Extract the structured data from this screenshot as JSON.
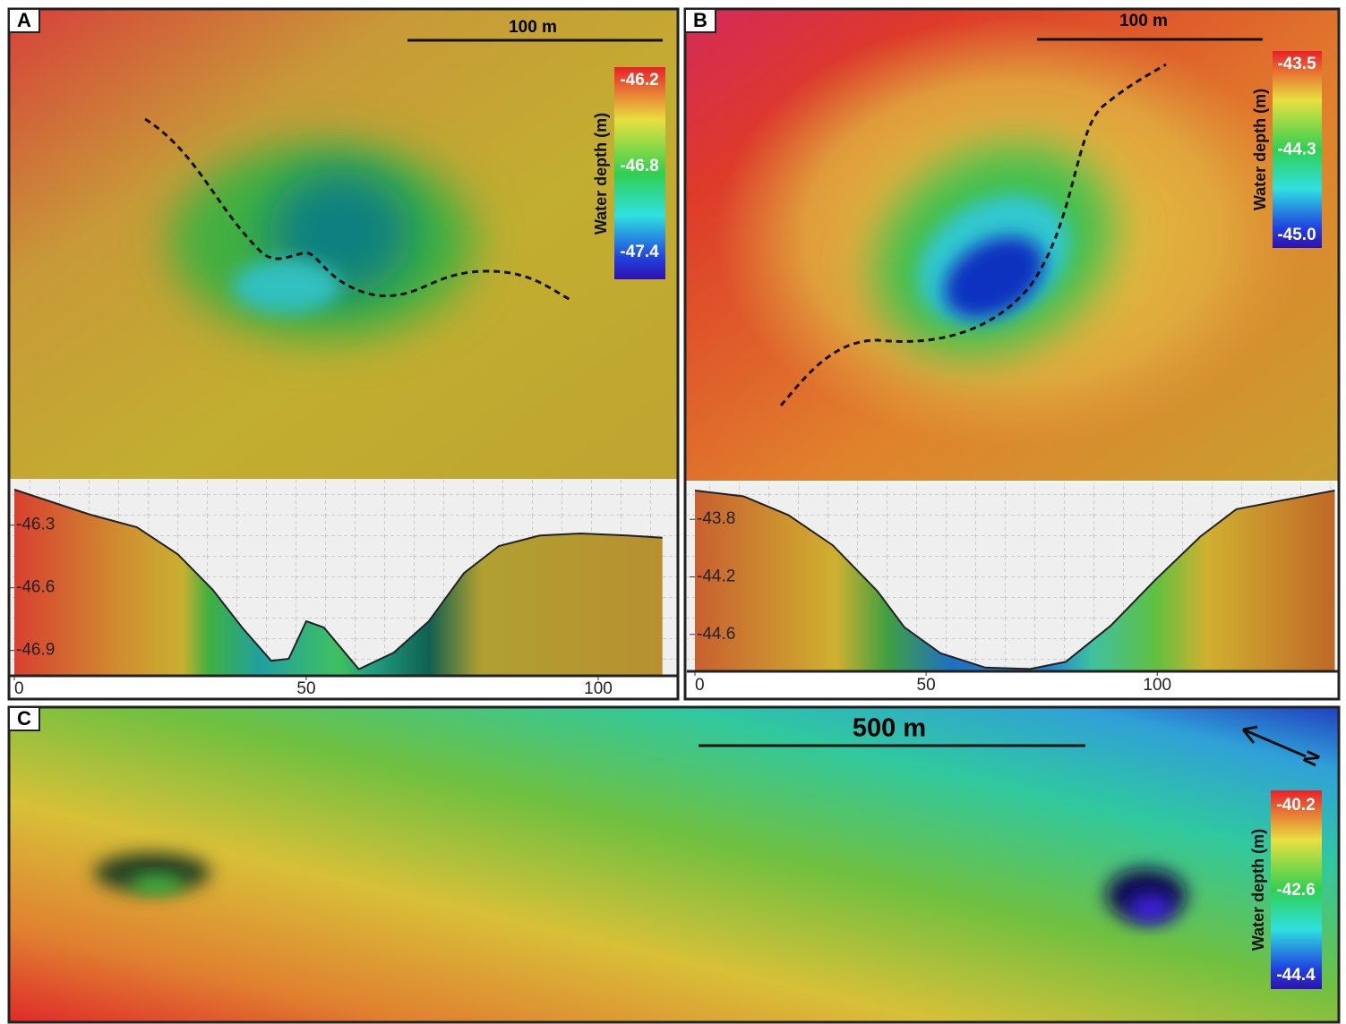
{
  "panels": {
    "a": {
      "label": "A",
      "scale": "100 m",
      "colorbar": {
        "title": "Water depth (m)",
        "ticks": [
          -46.2,
          -46.8,
          -47.4
        ]
      }
    },
    "b": {
      "label": "B",
      "scale": "100 m",
      "colorbar": {
        "title": "Water depth (m)",
        "ticks": [
          -43.5,
          -44.3,
          {
            "value": -45.0,
            "label": "-45.0"
          }
        ]
      }
    },
    "c": {
      "label": "C",
      "scale": "500 m",
      "north": "N",
      "colorbar": {
        "title": "Water depth (m)",
        "ticks": [
          -40.2,
          -42.6,
          -44.4
        ]
      }
    }
  },
  "chart_data": [
    {
      "type": "line",
      "x": [
        0,
        13,
        21,
        28,
        34,
        39,
        44,
        47,
        50,
        53,
        59,
        65,
        71,
        77,
        83,
        90,
        97,
        105,
        111
      ],
      "values": [
        -46.13,
        -46.25,
        -46.31,
        -46.44,
        -46.61,
        -46.79,
        -46.95,
        -46.94,
        -46.76,
        -46.79,
        -46.99,
        -46.91,
        -46.76,
        -46.53,
        -46.4,
        -46.35,
        -46.34,
        -46.35,
        -46.36
      ],
      "xlim": [
        0,
        113.5
      ],
      "ylim": [
        -47.0,
        -46.1
      ],
      "xticks": [
        0,
        50,
        100
      ],
      "yticks": [
        -46.3,
        -46.6,
        -46.9
      ]
    },
    {
      "type": "line",
      "x": [
        0,
        10.5,
        20.2,
        29.8,
        39.5,
        45.3,
        53.1,
        62.8,
        72.5,
        80.2,
        89.9,
        99.6,
        109.3,
        117.1,
        126.7,
        138.4
      ],
      "values": [
        -43.6,
        -43.64,
        -43.77,
        -43.98,
        -44.3,
        -44.55,
        -44.73,
        -44.83,
        -44.84,
        -44.79,
        -44.54,
        -44.22,
        -43.92,
        -43.73,
        -43.67,
        -43.6
      ],
      "xlim": [
        0,
        138.5
      ],
      "ylim": [
        -44.85,
        -43.55
      ],
      "xticks": [
        0,
        50,
        100
      ],
      "yticks": [
        -43.8,
        -44.2,
        -44.6
      ]
    }
  ]
}
